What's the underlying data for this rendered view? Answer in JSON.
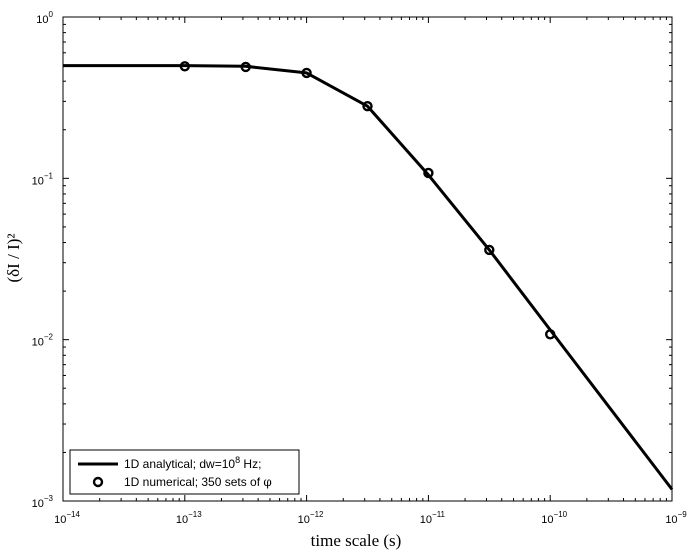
{
  "chart_data": {
    "type": "line",
    "xscale": "log",
    "yscale": "log",
    "xlim": [
      1e-14,
      1e-09
    ],
    "ylim": [
      0.001,
      1
    ],
    "xlabel": "time scale (s)",
    "ylabel": "(δI / I)²",
    "grid": false,
    "legend_position": "bottom-left",
    "x_ticks": [
      {
        "value": 1e-14,
        "base": "10",
        "exp": "−14"
      },
      {
        "value": 1e-13,
        "base": "10",
        "exp": "−13"
      },
      {
        "value": 1e-12,
        "base": "10",
        "exp": "−12"
      },
      {
        "value": 1e-11,
        "base": "10",
        "exp": "−11"
      },
      {
        "value": 1e-10,
        "base": "10",
        "exp": "−10"
      },
      {
        "value": 1e-09,
        "base": "10",
        "exp": "−9"
      }
    ],
    "y_ticks": [
      {
        "value": 1,
        "base": "10",
        "exp": "0"
      },
      {
        "value": 0.1,
        "base": "10",
        "exp": "−1"
      },
      {
        "value": 0.01,
        "base": "10",
        "exp": "−2"
      },
      {
        "value": 0.001,
        "base": "10",
        "exp": "−3"
      }
    ],
    "series": [
      {
        "name_parts": [
          "1D analytical; dw=10",
          "8",
          " Hz;"
        ],
        "style": "line",
        "color": "#000000",
        "x": [
          1e-14,
          1e-13,
          3.162e-13,
          1e-12,
          3.162e-12,
          1e-11,
          3.162e-11,
          1e-10,
          1e-09
        ],
        "y": [
          0.5,
          0.5,
          0.495,
          0.45,
          0.28,
          0.105,
          0.036,
          0.0115,
          0.00118
        ]
      },
      {
        "name_parts": [
          "1D numerical; 350 sets of ",
          "φ"
        ],
        "style": "marker-circle",
        "color": "#000000",
        "x": [
          1e-13,
          3.162e-13,
          1e-12,
          3.162e-12,
          1e-11,
          3.162e-11,
          1e-10
        ],
        "y": [
          0.495,
          0.49,
          0.45,
          0.28,
          0.108,
          0.036,
          0.0108
        ]
      }
    ]
  }
}
